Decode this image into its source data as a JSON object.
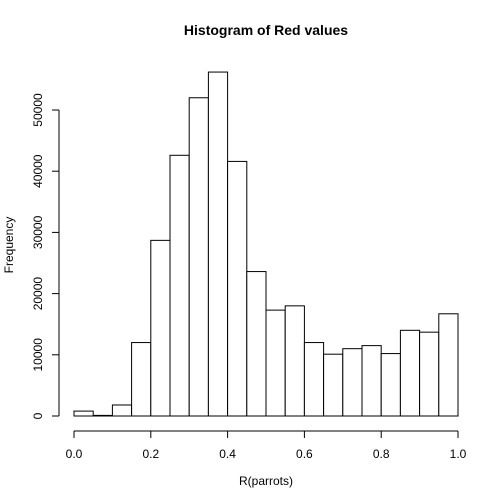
{
  "chart_data": {
    "type": "bar",
    "title": "Histogram of Red values",
    "xlabel": "R(parrots)",
    "ylabel": "Frequency",
    "bin_width": 0.05,
    "xlim": [
      0.0,
      1.0
    ],
    "ylim": [
      0,
      56000
    ],
    "bins": [
      {
        "start": 0.0,
        "end": 0.05,
        "value": 800
      },
      {
        "start": 0.05,
        "end": 0.1,
        "value": 100
      },
      {
        "start": 0.1,
        "end": 0.15,
        "value": 1800
      },
      {
        "start": 0.15,
        "end": 0.2,
        "value": 12000
      },
      {
        "start": 0.2,
        "end": 0.25,
        "value": 28700
      },
      {
        "start": 0.25,
        "end": 0.3,
        "value": 42600
      },
      {
        "start": 0.3,
        "end": 0.35,
        "value": 52000
      },
      {
        "start": 0.35,
        "end": 0.4,
        "value": 56200
      },
      {
        "start": 0.4,
        "end": 0.45,
        "value": 41600
      },
      {
        "start": 0.45,
        "end": 0.5,
        "value": 23600
      },
      {
        "start": 0.5,
        "end": 0.55,
        "value": 17300
      },
      {
        "start": 0.55,
        "end": 0.6,
        "value": 18000
      },
      {
        "start": 0.6,
        "end": 0.65,
        "value": 12000
      },
      {
        "start": 0.65,
        "end": 0.7,
        "value": 10100
      },
      {
        "start": 0.7,
        "end": 0.75,
        "value": 11000
      },
      {
        "start": 0.75,
        "end": 0.8,
        "value": 11500
      },
      {
        "start": 0.8,
        "end": 0.85,
        "value": 10200
      },
      {
        "start": 0.85,
        "end": 0.9,
        "value": 14000
      },
      {
        "start": 0.9,
        "end": 0.95,
        "value": 13700
      },
      {
        "start": 0.95,
        "end": 1.0,
        "value": 16700
      }
    ],
    "x_ticks": [
      {
        "value": 0.0,
        "label": "0.0"
      },
      {
        "value": 0.2,
        "label": "0.2"
      },
      {
        "value": 0.4,
        "label": "0.4"
      },
      {
        "value": 0.6,
        "label": "0.6"
      },
      {
        "value": 0.8,
        "label": "0.8"
      },
      {
        "value": 1.0,
        "label": "1.0"
      }
    ],
    "y_ticks": [
      {
        "value": 0,
        "label": "0"
      },
      {
        "value": 10000,
        "label": "10000"
      },
      {
        "value": 20000,
        "label": "20000"
      },
      {
        "value": 30000,
        "label": "30000"
      },
      {
        "value": 40000,
        "label": "40000"
      },
      {
        "value": 50000,
        "label": "50000"
      }
    ],
    "grid": false,
    "legend": "none"
  }
}
